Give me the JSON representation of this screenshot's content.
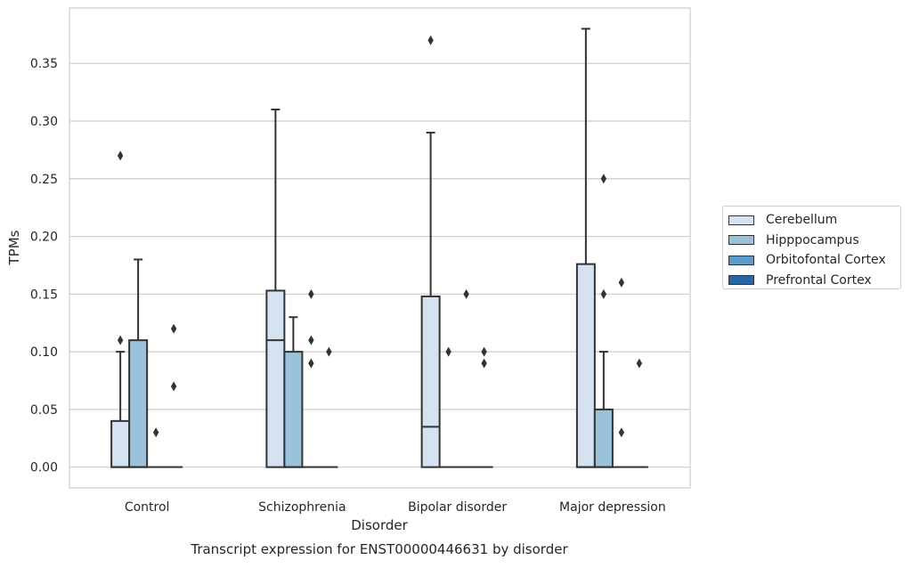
{
  "chart_data": {
    "type": "box",
    "title": "Transcript expression for ENST00000446631 by disorder",
    "xlabel": "Disorder",
    "ylabel": "TPMs",
    "ylim": [
      -0.018,
      0.398
    ],
    "yticks": [
      "0.00",
      "0.05",
      "0.10",
      "0.15",
      "0.20",
      "0.25",
      "0.30",
      "0.35"
    ],
    "ytick_values": [
      0.0,
      0.05,
      0.1,
      0.15,
      0.2,
      0.25,
      0.3,
      0.35
    ],
    "grid": true,
    "legend_position": "right",
    "categories": [
      "Control",
      "Schizophrenia",
      "Bipolar disorder",
      "Major depression"
    ],
    "series": [
      {
        "name": "Cerebellum",
        "color": "#d4e2f1",
        "boxes": [
          {
            "q1": 0.0,
            "median": 0.0,
            "q3": 0.04,
            "whisker_low": 0.0,
            "whisker_high": 0.1,
            "outliers": [
              0.11,
              0.27
            ]
          },
          {
            "q1": 0.0,
            "median": 0.11,
            "q3": 0.153,
            "whisker_low": 0.0,
            "whisker_high": 0.31,
            "outliers": []
          },
          {
            "q1": 0.0,
            "median": 0.035,
            "q3": 0.148,
            "whisker_low": 0.0,
            "whisker_high": 0.29,
            "outliers": [
              0.37
            ]
          },
          {
            "q1": 0.0,
            "median": 0.0,
            "q3": 0.176,
            "whisker_low": 0.0,
            "whisker_high": 0.38,
            "outliers": []
          }
        ]
      },
      {
        "name": "Hipppocampus",
        "color": "#9ac2da",
        "boxes": [
          {
            "q1": 0.0,
            "median": 0.0,
            "q3": 0.11,
            "whisker_low": 0.0,
            "whisker_high": 0.18,
            "outliers": []
          },
          {
            "q1": 0.0,
            "median": 0.0,
            "q3": 0.1,
            "whisker_low": 0.0,
            "whisker_high": 0.13,
            "outliers": []
          },
          {
            "q1": 0.0,
            "median": 0.0,
            "q3": 0.0,
            "whisker_low": 0.0,
            "whisker_high": 0.0,
            "outliers": [
              0.1
            ]
          },
          {
            "q1": 0.0,
            "median": 0.0,
            "q3": 0.05,
            "whisker_low": 0.0,
            "whisker_high": 0.1,
            "outliers": [
              0.15,
              0.25
            ]
          }
        ]
      },
      {
        "name": "Orbitofontal Cortex",
        "color": "#5b9ac9",
        "boxes": [
          {
            "q1": 0.0,
            "median": 0.0,
            "q3": 0.0,
            "whisker_low": 0.0,
            "whisker_high": 0.0,
            "outliers": [
              0.03
            ]
          },
          {
            "q1": 0.0,
            "median": 0.0,
            "q3": 0.0,
            "whisker_low": 0.0,
            "whisker_high": 0.0,
            "outliers": [
              0.09,
              0.11,
              0.15
            ]
          },
          {
            "q1": 0.0,
            "median": 0.0,
            "q3": 0.0,
            "whisker_low": 0.0,
            "whisker_high": 0.0,
            "outliers": [
              0.15
            ]
          },
          {
            "q1": 0.0,
            "median": 0.0,
            "q3": 0.0,
            "whisker_low": 0.0,
            "whisker_high": 0.0,
            "outliers": [
              0.03,
              0.16
            ]
          }
        ]
      },
      {
        "name": "Prefrontal Cortex",
        "color": "#2866a5",
        "boxes": [
          {
            "q1": 0.0,
            "median": 0.0,
            "q3": 0.0,
            "whisker_low": 0.0,
            "whisker_high": 0.0,
            "outliers": [
              0.07,
              0.12
            ]
          },
          {
            "q1": 0.0,
            "median": 0.0,
            "q3": 0.0,
            "whisker_low": 0.0,
            "whisker_high": 0.0,
            "outliers": [
              0.1
            ]
          },
          {
            "q1": 0.0,
            "median": 0.0,
            "q3": 0.0,
            "whisker_low": 0.0,
            "whisker_high": 0.0,
            "outliers": [
              0.09,
              0.1
            ]
          },
          {
            "q1": 0.0,
            "median": 0.0,
            "q3": 0.0,
            "whisker_low": 0.0,
            "whisker_high": 0.0,
            "outliers": [
              0.09
            ]
          }
        ]
      }
    ]
  }
}
